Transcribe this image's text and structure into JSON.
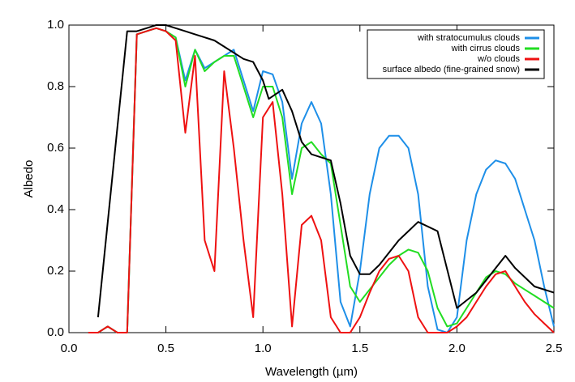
{
  "chart_data": {
    "type": "line",
    "x_label": "Wavelength (µm)",
    "y_label": "Albedo",
    "xlim": [
      0,
      2.5
    ],
    "ylim": [
      0,
      1.0
    ],
    "xticks": [
      {
        "value": 0,
        "label": "0.0"
      },
      {
        "value": 0.5,
        "label": "0.5"
      },
      {
        "value": 1.0,
        "label": "1.0"
      },
      {
        "value": 1.5,
        "label": "1.5"
      },
      {
        "value": 2.0,
        "label": "2.0"
      },
      {
        "value": 2.5,
        "label": "2.5"
      }
    ],
    "yticks": [
      {
        "value": 0,
        "label": "0.0"
      },
      {
        "value": 0.2,
        "label": "0.2"
      },
      {
        "value": 0.4,
        "label": "0.4"
      },
      {
        "value": 0.6,
        "label": "0.6"
      },
      {
        "value": 0.8,
        "label": "0.8"
      },
      {
        "value": 1.0,
        "label": "1.0"
      }
    ],
    "legend": "upper right",
    "x": [
      0.1,
      0.15,
      0.2,
      0.25,
      0.3,
      0.35,
      0.4,
      0.45,
      0.5,
      0.55,
      0.6,
      0.65,
      0.7,
      0.75,
      0.8,
      0.85,
      0.9,
      0.95,
      1.0,
      1.05,
      1.1,
      1.15,
      1.2,
      1.25,
      1.3,
      1.35,
      1.4,
      1.45,
      1.5,
      1.55,
      1.6,
      1.65,
      1.7,
      1.75,
      1.8,
      1.85,
      1.9,
      1.95,
      2.0,
      2.05,
      2.1,
      2.15,
      2.2,
      2.25,
      2.3,
      2.35,
      2.4,
      2.45,
      2.5
    ],
    "series": [
      {
        "name": "with stratocumulus clouds",
        "color": "#1e8fe8",
        "values": [
          0,
          0,
          0.02,
          0,
          0,
          0.97,
          0.98,
          0.99,
          0.98,
          0.96,
          0.82,
          0.92,
          0.86,
          0.88,
          0.9,
          0.92,
          0.82,
          0.72,
          0.85,
          0.84,
          0.75,
          0.5,
          0.68,
          0.75,
          0.68,
          0.45,
          0.1,
          0.02,
          0.2,
          0.45,
          0.6,
          0.64,
          0.64,
          0.6,
          0.45,
          0.15,
          0.01,
          0,
          0.05,
          0.3,
          0.45,
          0.53,
          0.56,
          0.55,
          0.5,
          0.4,
          0.3,
          0.15,
          0.02
        ]
      },
      {
        "name": "with cirrus clouds",
        "color": "#22dd22",
        "values": [
          0,
          0,
          0.02,
          0,
          0,
          0.97,
          0.98,
          0.99,
          0.98,
          0.96,
          0.8,
          0.92,
          0.85,
          0.88,
          0.9,
          0.9,
          0.8,
          0.7,
          0.8,
          0.8,
          0.7,
          0.45,
          0.6,
          0.62,
          0.58,
          0.55,
          0.35,
          0.15,
          0.1,
          0.14,
          0.18,
          0.22,
          0.25,
          0.27,
          0.26,
          0.2,
          0.08,
          0.02,
          0.03,
          0.08,
          0.13,
          0.18,
          0.2,
          0.19,
          0.16,
          0.14,
          0.12,
          0.1,
          0.08
        ]
      },
      {
        "name": "w/o clouds",
        "color": "#ee1111",
        "values": [
          0,
          0,
          0.02,
          0,
          0,
          0.97,
          0.98,
          0.99,
          0.98,
          0.95,
          0.65,
          0.9,
          0.3,
          0.2,
          0.85,
          0.6,
          0.3,
          0.05,
          0.7,
          0.75,
          0.45,
          0.02,
          0.35,
          0.38,
          0.3,
          0.05,
          0,
          0,
          0.05,
          0.13,
          0.2,
          0.24,
          0.25,
          0.2,
          0.05,
          0,
          0,
          0,
          0.02,
          0.05,
          0.1,
          0.15,
          0.19,
          0.2,
          0.15,
          0.1,
          0.06,
          0.03,
          0
        ]
      },
      {
        "name": "surface albedo (fine-grained snow)",
        "color": "#000000",
        "x": [
          0.15,
          0.3,
          0.35,
          0.4,
          0.45,
          0.5,
          0.55,
          0.6,
          0.65,
          0.7,
          0.75,
          0.8,
          0.85,
          0.9,
          0.95,
          1.0,
          1.03,
          1.1,
          1.15,
          1.2,
          1.25,
          1.3,
          1.35,
          1.4,
          1.45,
          1.5,
          1.55,
          1.6,
          1.7,
          1.8,
          1.9,
          2.0,
          2.1,
          2.2,
          2.25,
          2.3,
          2.4,
          2.5
        ],
        "values": [
          0.05,
          0.98,
          0.98,
          0.99,
          1.0,
          1.0,
          0.99,
          0.98,
          0.97,
          0.96,
          0.95,
          0.93,
          0.91,
          0.89,
          0.88,
          0.82,
          0.76,
          0.79,
          0.72,
          0.62,
          0.58,
          0.57,
          0.56,
          0.42,
          0.25,
          0.19,
          0.19,
          0.22,
          0.3,
          0.36,
          0.33,
          0.08,
          0.13,
          0.21,
          0.25,
          0.21,
          0.15,
          0.13
        ]
      }
    ]
  }
}
